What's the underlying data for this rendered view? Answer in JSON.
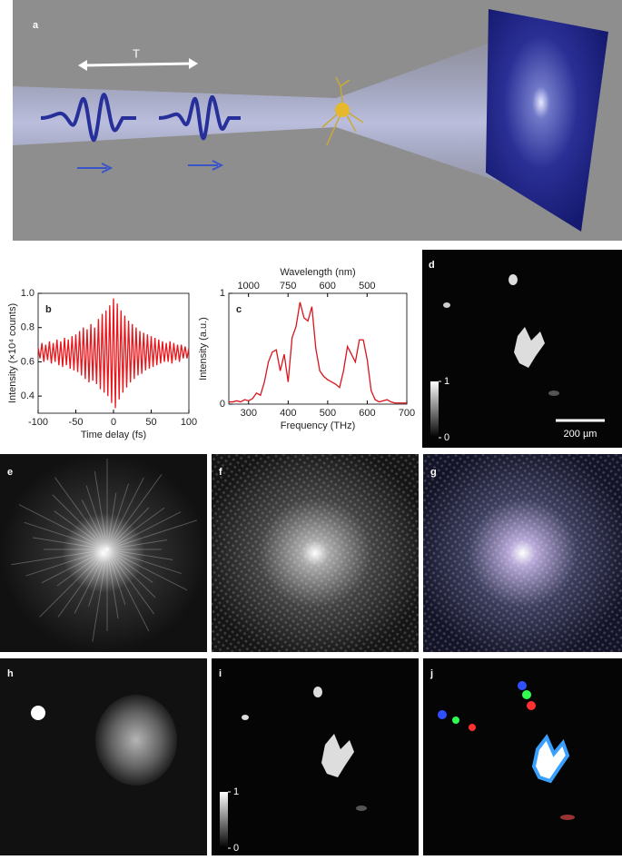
{
  "figure": {
    "panel_a": {
      "label": "a",
      "delay_label": "T"
    },
    "panel_d": {
      "label": "d",
      "colorbar_ticks": [
        0,
        1
      ],
      "scale_bar": "200 µm"
    },
    "panel_e": {
      "label": "e"
    },
    "panel_f": {
      "label": "f"
    },
    "panel_g": {
      "label": "g"
    },
    "panel_h": {
      "label": "h"
    },
    "panel_i": {
      "label": "i",
      "colorbar_ticks": [
        0,
        1
      ]
    },
    "panel_j": {
      "label": "j"
    }
  },
  "chart_data": [
    {
      "type": "line",
      "panel_label": "b",
      "x_label": "Time delay (fs)",
      "y_label": "Intensity (×10⁴ counts)",
      "color": "#e8161b",
      "xlim": [
        -100,
        100
      ],
      "ylim": [
        0.3,
        1
      ],
      "xticks": [
        -100,
        -50,
        0,
        50,
        100
      ],
      "yticks": [
        0.4,
        0.6,
        0.8,
        {
          "value": 1,
          "label": "1.0"
        }
      ],
      "x": [
        -100,
        -97.5,
        -95,
        -92.5,
        -90,
        -87.5,
        -85,
        -82.5,
        -80,
        -77.5,
        -75,
        -72.5,
        -70,
        -67.5,
        -65,
        -62.5,
        -60,
        -57.5,
        -55,
        -52.5,
        -50,
        -47.5,
        -45,
        -42.5,
        -40,
        -37.5,
        -35,
        -32.5,
        -30,
        -27.5,
        -25,
        -22.5,
        -20,
        -17.5,
        -15,
        -12.5,
        -10,
        -7.5,
        -5,
        -2.5,
        0,
        2.5,
        5,
        7.5,
        10,
        12.5,
        15,
        17.5,
        20,
        22.5,
        25,
        27.5,
        30,
        32.5,
        35,
        37.5,
        40,
        42.5,
        45,
        47.5,
        50,
        52.5,
        55,
        57.5,
        60,
        62.5,
        65,
        67.5,
        70,
        72.5,
        75,
        77.5,
        80,
        82.5,
        85,
        87.5,
        90,
        92.5,
        95,
        97.5,
        100
      ],
      "values": [
        0.68,
        0.62,
        0.71,
        0.6,
        0.7,
        0.61,
        0.72,
        0.59,
        0.71,
        0.6,
        0.73,
        0.58,
        0.72,
        0.57,
        0.74,
        0.58,
        0.73,
        0.56,
        0.75,
        0.55,
        0.76,
        0.54,
        0.78,
        0.52,
        0.8,
        0.5,
        0.79,
        0.48,
        0.82,
        0.49,
        0.8,
        0.47,
        0.85,
        0.44,
        0.88,
        0.42,
        0.9,
        0.4,
        0.93,
        0.36,
        0.97,
        0.33,
        0.94,
        0.38,
        0.9,
        0.42,
        0.87,
        0.45,
        0.84,
        0.48,
        0.82,
        0.5,
        0.8,
        0.52,
        0.78,
        0.53,
        0.77,
        0.55,
        0.76,
        0.56,
        0.75,
        0.57,
        0.74,
        0.58,
        0.73,
        0.59,
        0.72,
        0.6,
        0.71,
        0.6,
        0.72,
        0.59,
        0.71,
        0.61,
        0.7,
        0.6,
        0.7,
        0.62,
        0.69,
        0.62,
        0.68
      ]
    },
    {
      "type": "line",
      "panel_label": "c",
      "x_label": "Frequency (THz)",
      "y_label": "Intensity (a.u.)",
      "x2_label": "Wavelength (nm)",
      "color": "#d9141b",
      "xlim": [
        250,
        700
      ],
      "ylim": [
        0,
        1
      ],
      "xticks": [
        300,
        400,
        500,
        600,
        700
      ],
      "yticks": [
        0,
        1
      ],
      "x2ticks": [
        1000,
        750,
        600,
        500
      ],
      "x": [
        250,
        260,
        270,
        280,
        290,
        300,
        310,
        320,
        330,
        340,
        350,
        360,
        370,
        380,
        390,
        400,
        410,
        420,
        430,
        440,
        450,
        460,
        470,
        480,
        490,
        500,
        510,
        520,
        530,
        540,
        550,
        560,
        570,
        580,
        590,
        600,
        610,
        620,
        630,
        640,
        650,
        660,
        670,
        680,
        690,
        700
      ],
      "values": [
        0.02,
        0.02,
        0.03,
        0.02,
        0.04,
        0.03,
        0.05,
        0.1,
        0.08,
        0.2,
        0.38,
        0.47,
        0.49,
        0.3,
        0.45,
        0.2,
        0.6,
        0.7,
        0.92,
        0.78,
        0.75,
        0.88,
        0.5,
        0.3,
        0.25,
        0.22,
        0.2,
        0.18,
        0.15,
        0.3,
        0.52,
        0.45,
        0.38,
        0.58,
        0.58,
        0.4,
        0.12,
        0.04,
        0.02,
        0.03,
        0.04,
        0.02,
        0.01,
        0.01,
        0.01,
        0.01
      ]
    }
  ]
}
